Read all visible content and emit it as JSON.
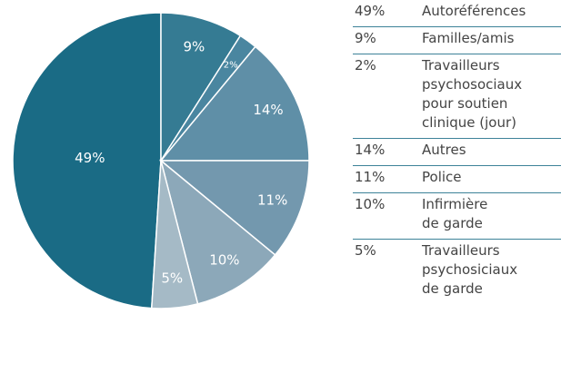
{
  "chart_data": {
    "type": "pie",
    "categories": [
      "Autoréférences",
      "Familles/amis",
      "Travailleurs\npsychosociaux\npour soutien\nclinique (jour)",
      "Autres",
      "Police",
      "Infirmière\nde garde",
      "Travailleurs\npsychosiciaux\nde garde"
    ],
    "values": [
      49,
      9,
      2,
      14,
      11,
      10,
      5
    ],
    "value_labels": [
      "49%",
      "9%",
      "2%",
      "14%",
      "11%",
      "10%",
      "5%"
    ],
    "colors": [
      "#1a6b85",
      "#357b93",
      "#4a86a0",
      "#5f8fa7",
      "#7398ae",
      "#8ca8b9",
      "#a5bac6"
    ]
  }
}
